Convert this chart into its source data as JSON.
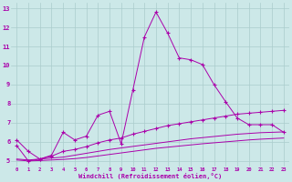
{
  "xlabel": "Windchill (Refroidissement éolien,°C)",
  "background_color": "#cce8e8",
  "grid_color": "#aacccc",
  "line_color": "#aa00aa",
  "x_series": [
    0,
    1,
    2,
    3,
    4,
    5,
    6,
    7,
    8,
    9,
    10,
    11,
    12,
    13,
    14,
    15,
    16,
    17,
    18,
    19,
    20,
    21,
    22,
    23
  ],
  "ylim": [
    4.7,
    13.3
  ],
  "xlim": [
    -0.5,
    23.5
  ],
  "yticks": [
    5,
    6,
    7,
    8,
    9,
    10,
    11,
    12,
    13
  ],
  "line1_x": [
    0,
    1,
    2,
    3,
    4,
    5,
    6,
    7,
    8,
    9,
    10,
    11,
    12,
    13,
    14,
    15,
    16,
    17,
    18,
    19,
    20,
    21,
    22,
    23
  ],
  "line1_y": [
    6.1,
    5.5,
    5.1,
    5.3,
    6.5,
    6.1,
    6.3,
    7.4,
    7.6,
    5.9,
    8.7,
    11.5,
    12.8,
    11.7,
    10.4,
    10.3,
    10.05,
    9.0,
    8.1,
    7.25,
    6.9,
    6.9,
    6.9,
    6.5
  ],
  "line2_x": [
    0,
    1,
    2,
    3,
    4,
    5,
    6,
    7,
    8,
    9,
    10,
    11,
    12,
    13,
    14,
    15,
    16,
    17,
    18,
    19,
    20,
    21,
    22,
    23
  ],
  "line2_y": [
    5.8,
    5.0,
    5.1,
    5.25,
    5.5,
    5.6,
    5.75,
    5.95,
    6.1,
    6.2,
    6.4,
    6.55,
    6.7,
    6.85,
    6.95,
    7.05,
    7.15,
    7.25,
    7.35,
    7.45,
    7.5,
    7.55,
    7.6,
    7.65
  ],
  "line3_x": [
    0,
    1,
    2,
    3,
    4,
    5,
    6,
    7,
    8,
    9,
    10,
    11,
    12,
    13,
    14,
    15,
    16,
    17,
    18,
    19,
    20,
    21,
    22,
    23
  ],
  "line3_y": [
    5.1,
    5.05,
    5.1,
    5.15,
    5.2,
    5.3,
    5.4,
    5.5,
    5.6,
    5.68,
    5.76,
    5.84,
    5.92,
    6.0,
    6.08,
    6.16,
    6.22,
    6.28,
    6.34,
    6.4,
    6.44,
    6.48,
    6.5,
    6.52
  ],
  "line4_x": [
    0,
    1,
    2,
    3,
    4,
    5,
    6,
    7,
    8,
    9,
    10,
    11,
    12,
    13,
    14,
    15,
    16,
    17,
    18,
    19,
    20,
    21,
    22,
    23
  ],
  "line4_y": [
    5.05,
    5.0,
    5.02,
    5.05,
    5.08,
    5.12,
    5.18,
    5.26,
    5.34,
    5.42,
    5.5,
    5.58,
    5.66,
    5.72,
    5.78,
    5.84,
    5.9,
    5.95,
    6.0,
    6.05,
    6.1,
    6.14,
    6.17,
    6.2
  ]
}
